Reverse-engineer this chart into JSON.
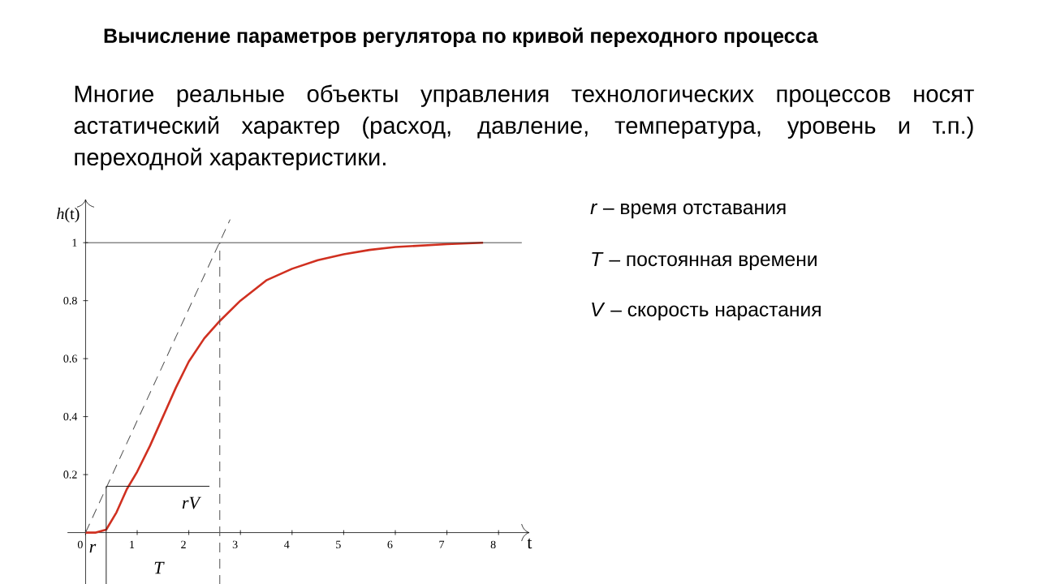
{
  "chart_data": {
    "type": "line",
    "title": "Вычисление параметров регулятора по кривой переходного процесса",
    "subtitle": "Многие реальные объекты управления технологических процессов носят астатический характер (расход, давление, температура, уровень и т.п.) переходной характеристики.",
    "xlabel": "t",
    "ylabel": "*h*(t)",
    "xlim": [
      -0.35,
      8.6
    ],
    "ylim": [
      -0.18,
      1.15
    ],
    "xticks": [
      0,
      1,
      2,
      3,
      4,
      5,
      6,
      7,
      8
    ],
    "yticks": [
      0.2,
      0.4,
      0.6,
      0.8,
      1
    ],
    "grid": false,
    "series": [
      {
        "color": "#d03020",
        "line_style": "solid",
        "x": [
          0,
          0.2,
          0.4,
          0.6,
          0.8,
          1.0,
          1.25,
          1.5,
          1.75,
          2.0,
          2.3,
          2.6,
          3.0,
          3.5,
          4.0,
          4.5,
          5.0,
          5.5,
          6.0,
          7.0,
          7.7
        ],
        "values": [
          0,
          0,
          0.01,
          0.07,
          0.15,
          0.21,
          0.3,
          0.4,
          0.5,
          0.59,
          0.67,
          0.73,
          0.8,
          0.87,
          0.91,
          0.94,
          0.96,
          0.975,
          0.985,
          0.995,
          1.0
        ]
      },
      {
        "color": "#505050",
        "line_style": "dashed",
        "x": [
          0,
          2.8
        ],
        "values": [
          0,
          1.08
        ]
      },
      {
        "color": "#505050",
        "line_style": "dashed",
        "x": [
          2.6,
          2.6
        ],
        "values": [
          -0.18,
          1
        ]
      },
      {
        "color": "#202020",
        "line_style": "solid",
        "x": [
          0.4,
          2.4
        ],
        "values": [
          0.16,
          0.16
        ]
      },
      {
        "color": "#202020",
        "line_style": "solid",
        "x": [
          0.4,
          0.4
        ],
        "values": [
          -0.18,
          0.16
        ]
      }
    ],
    "ref_lines": [
      {
        "axis": "y",
        "value": 1,
        "color": "#202020"
      }
    ],
    "annotations": [
      "*r* – время отставания",
      "*T* – постоянная времени",
      "*V* – скорость нарастания",
      "*r*",
      "*rV*",
      "*T*"
    ]
  }
}
